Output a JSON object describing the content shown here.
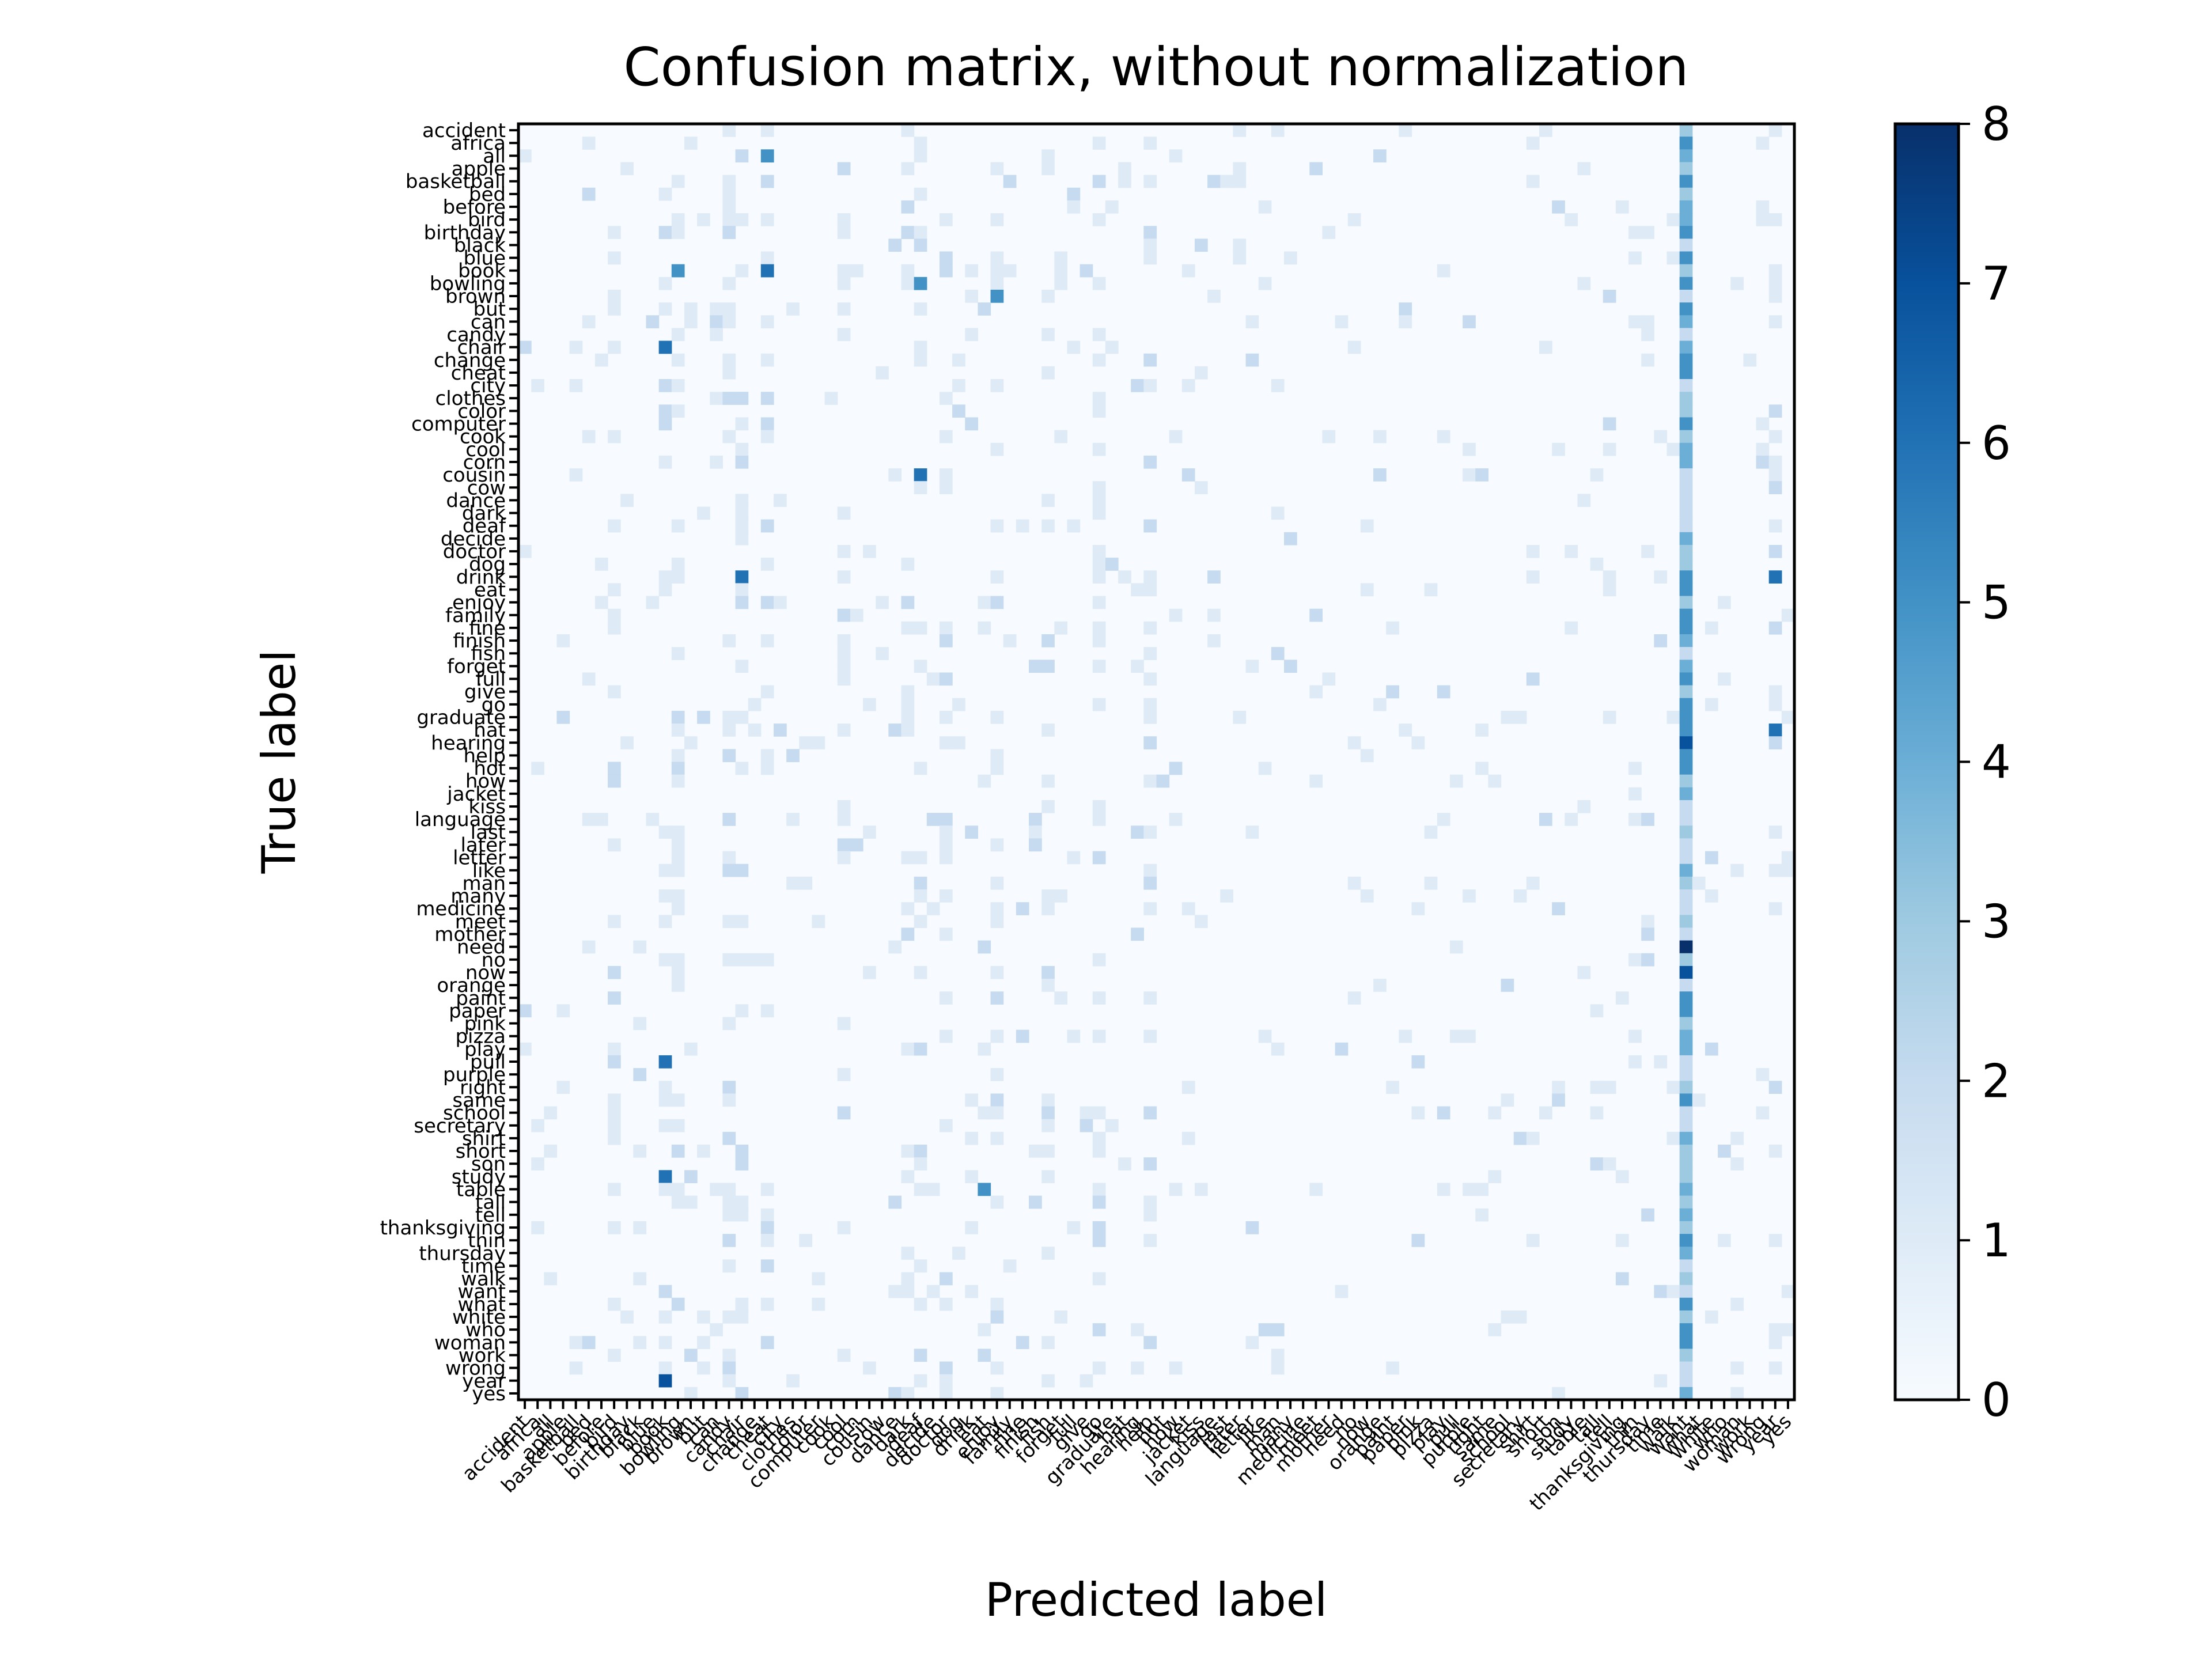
{
  "chart_data": {
    "type": "heatmap",
    "title": "Confusion matrix, without normalization",
    "xlabel": "Predicted label",
    "ylabel": "True label",
    "labels": [
      "accident",
      "africa",
      "all",
      "apple",
      "basketball",
      "bed",
      "before",
      "bird",
      "birthday",
      "black",
      "blue",
      "book",
      "bowling",
      "brown",
      "but",
      "can",
      "candy",
      "chair",
      "change",
      "cheat",
      "city",
      "clothes",
      "color",
      "computer",
      "cook",
      "cool",
      "corn",
      "cousin",
      "cow",
      "dance",
      "dark",
      "deaf",
      "decide",
      "doctor",
      "dog",
      "drink",
      "eat",
      "enjoy",
      "family",
      "fine",
      "finish",
      "fish",
      "forget",
      "full",
      "give",
      "go",
      "graduate",
      "hat",
      "hearing",
      "help",
      "hot",
      "how",
      "jacket",
      "kiss",
      "language",
      "last",
      "later",
      "letter",
      "like",
      "man",
      "many",
      "medicine",
      "meet",
      "mother",
      "need",
      "no",
      "now",
      "orange",
      "paint",
      "paper",
      "pink",
      "pizza",
      "play",
      "pull",
      "purple",
      "right",
      "same",
      "school",
      "secretary",
      "shirt",
      "short",
      "son",
      "study",
      "table",
      "tall",
      "tell",
      "thanksgiving",
      "thin",
      "thursday",
      "time",
      "walk",
      "want",
      "what",
      "white",
      "who",
      "woman",
      "work",
      "wrong",
      "year",
      "yes"
    ],
    "colorbar": {
      "min": 0,
      "max": 8,
      "ticks": [
        0,
        1,
        2,
        3,
        4,
        5,
        6,
        7,
        8
      ]
    },
    "colormap": "Blues",
    "colors": {
      "low": "#f7fbff",
      "high": "#08306b"
    },
    "notable_cells": [
      {
        "true": "all",
        "pred": "cheat",
        "count": 5
      },
      {
        "true": "book",
        "pred": "cheat",
        "count": 6
      },
      {
        "true": "book",
        "pred": "bowling",
        "count": 5
      },
      {
        "true": "bowling",
        "pred": "deaf",
        "count": 5
      },
      {
        "true": "brown",
        "pred": "enjoy",
        "count": 5
      },
      {
        "true": "chair",
        "pred": "book",
        "count": 6
      },
      {
        "true": "cousin",
        "pred": "deaf",
        "count": 6
      },
      {
        "true": "drink",
        "pred": "chair",
        "count": 6
      },
      {
        "true": "drink",
        "pred": "year",
        "count": 6
      },
      {
        "true": "hat",
        "pred": "year",
        "count": 6
      },
      {
        "true": "pull",
        "pred": "book",
        "count": 6
      },
      {
        "true": "study",
        "pred": "book",
        "count": 6
      },
      {
        "true": "table",
        "pred": "eat",
        "count": 5
      },
      {
        "true": "year",
        "pred": "book",
        "count": 7
      },
      {
        "true": "need",
        "pred": "want",
        "count": 8
      },
      {
        "true": "now",
        "pred": "want",
        "count": 7
      },
      {
        "true": "hearing",
        "pred": "want",
        "count": 7
      }
    ],
    "dominant_column": {
      "pred": "want",
      "typical_count_range": [
        3,
        8
      ]
    }
  }
}
